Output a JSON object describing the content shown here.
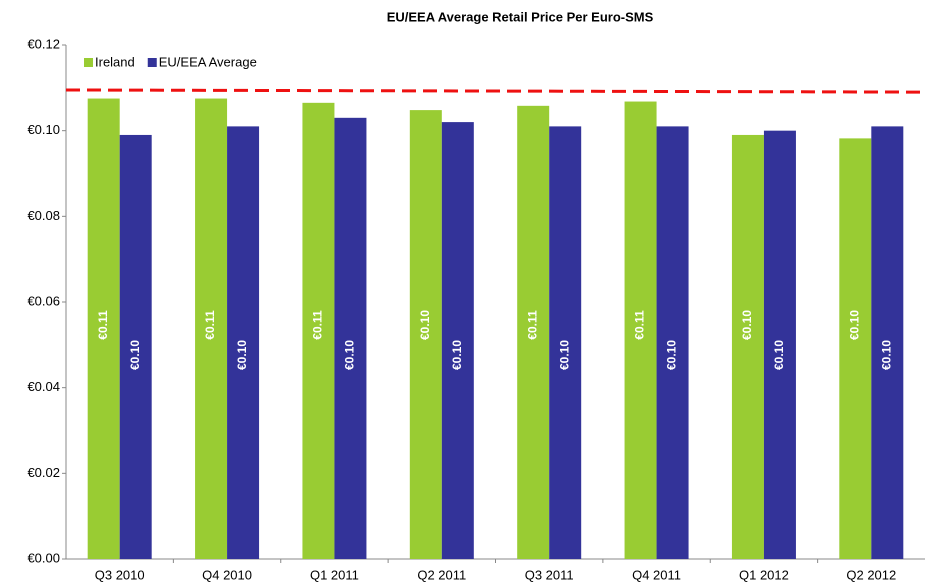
{
  "chart_data": {
    "type": "bar",
    "title": "EU/EEA  Average Retail Price Per Euro-SMS",
    "categories": [
      "Q3 2010",
      "Q4 2010",
      "Q1 2011",
      "Q2 2011",
      "Q3 2011",
      "Q4 2011",
      "Q1 2012",
      "Q2 2012"
    ],
    "series": [
      {
        "name": "Ireland",
        "color": "#99cc33",
        "values": [
          0.1075,
          0.1075,
          0.1065,
          0.1048,
          0.1058,
          0.1068,
          0.099,
          0.0982
        ],
        "value_labels": [
          "€0.11",
          "€0.11",
          "€0.11",
          "€0.10",
          "€0.11",
          "€0.11",
          "€0.10",
          "€0.10"
        ]
      },
      {
        "name": "EU/EEA Average",
        "color": "#333399",
        "values": [
          0.099,
          0.101,
          0.103,
          0.102,
          0.101,
          0.101,
          0.1,
          0.101
        ],
        "value_labels": [
          "€0.10",
          "€0.10",
          "€0.10",
          "€0.10",
          "€0.10",
          "€0.10",
          "€0.10",
          "€0.10"
        ]
      }
    ],
    "reference_line": {
      "color": "#ee1111",
      "values": [
        0.1095,
        0.109
      ]
    },
    "ylim": [
      0,
      0.12
    ],
    "yticks": [
      {
        "value": 0,
        "label": "€0.00"
      },
      {
        "value": 0.02,
        "label": "€0.02"
      },
      {
        "value": 0.04,
        "label": "€0.04"
      },
      {
        "value": 0.06,
        "label": "€0.06"
      },
      {
        "value": 0.08,
        "label": "€0.08"
      },
      {
        "value": 0.1,
        "label": "€0.10"
      },
      {
        "value": 0.12,
        "label": "€0.12"
      }
    ],
    "legend": "top-left"
  }
}
